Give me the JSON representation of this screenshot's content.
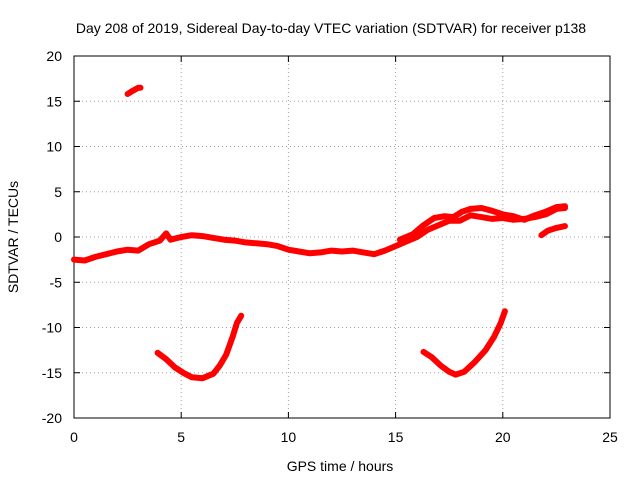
{
  "chart_data": {
    "type": "scatter",
    "title": "Day 208 of 2019, Sidereal Day-to-day VTEC variation (SDTVAR) for receiver p138",
    "xlabel": "GPS time / hours",
    "ylabel": "SDTVAR / TECUs",
    "xlim": [
      0,
      25
    ],
    "ylim": [
      -20,
      20
    ],
    "xticks": [
      0,
      5,
      10,
      15,
      20,
      25
    ],
    "yticks": [
      -20,
      -15,
      -10,
      -5,
      0,
      5,
      10,
      15,
      20
    ],
    "grid": true,
    "color": "#ff0000",
    "series": [
      {
        "name": "main-band",
        "points": [
          [
            0,
            -2.5
          ],
          [
            0.5,
            -2.6
          ],
          [
            1,
            -2.2
          ],
          [
            1.5,
            -1.9
          ],
          [
            2,
            -1.6
          ],
          [
            2.5,
            -1.4
          ],
          [
            3,
            -1.5
          ],
          [
            3.5,
            -0.8
          ],
          [
            4,
            -0.4
          ],
          [
            4.3,
            0.4
          ],
          [
            4.5,
            -0.3
          ],
          [
            5,
            0.0
          ],
          [
            5.5,
            0.2
          ],
          [
            6,
            0.1
          ],
          [
            6.5,
            -0.1
          ],
          [
            7,
            -0.3
          ],
          [
            7.5,
            -0.4
          ],
          [
            8,
            -0.6
          ],
          [
            8.5,
            -0.7
          ],
          [
            9,
            -0.8
          ],
          [
            9.5,
            -1.0
          ],
          [
            10,
            -1.4
          ],
          [
            10.5,
            -1.6
          ],
          [
            11,
            -1.8
          ],
          [
            11.5,
            -1.7
          ],
          [
            12,
            -1.5
          ],
          [
            12.5,
            -1.6
          ],
          [
            13,
            -1.5
          ],
          [
            13.5,
            -1.7
          ],
          [
            14,
            -1.9
          ],
          [
            14.5,
            -1.5
          ],
          [
            15,
            -1.0
          ],
          [
            15.5,
            -0.5
          ],
          [
            16,
            0.0
          ],
          [
            16.5,
            0.8
          ],
          [
            17,
            1.3
          ],
          [
            17.5,
            1.8
          ],
          [
            18,
            1.8
          ],
          [
            18.5,
            2.4
          ],
          [
            19,
            2.2
          ],
          [
            19.5,
            2.0
          ],
          [
            20,
            2.1
          ],
          [
            20.5,
            1.9
          ],
          [
            21,
            2.0
          ],
          [
            21.5,
            2.2
          ],
          [
            22,
            2.5
          ],
          [
            22.5,
            3.1
          ],
          [
            22.9,
            3.2
          ]
        ]
      },
      {
        "name": "upper-band",
        "points": [
          [
            15.2,
            -0.3
          ],
          [
            15.8,
            0.3
          ],
          [
            16.3,
            1.3
          ],
          [
            16.8,
            2.1
          ],
          [
            17.3,
            2.3
          ],
          [
            17.7,
            2.2
          ],
          [
            18.1,
            2.8
          ],
          [
            18.5,
            3.1
          ],
          [
            19,
            3.2
          ],
          [
            19.5,
            2.9
          ],
          [
            20,
            2.5
          ],
          [
            20.5,
            2.3
          ],
          [
            21,
            1.9
          ],
          [
            21.5,
            2.4
          ],
          [
            22,
            2.8
          ],
          [
            22.5,
            3.3
          ],
          [
            22.9,
            3.4
          ]
        ]
      },
      {
        "name": "early-high",
        "points": [
          [
            2.5,
            15.8
          ],
          [
            2.7,
            16.1
          ],
          [
            3.0,
            16.5
          ],
          [
            3.1,
            16.5
          ]
        ]
      },
      {
        "name": "late-right",
        "points": [
          [
            21.8,
            0.2
          ],
          [
            22.1,
            0.7
          ],
          [
            22.5,
            1.0
          ],
          [
            22.9,
            1.2
          ]
        ]
      },
      {
        "name": "trough-1",
        "points": [
          [
            3.9,
            -12.8
          ],
          [
            4.3,
            -13.5
          ],
          [
            4.7,
            -14.4
          ],
          [
            5.1,
            -15.0
          ],
          [
            5.5,
            -15.5
          ],
          [
            6.0,
            -15.6
          ],
          [
            6.5,
            -15.1
          ],
          [
            6.8,
            -14.2
          ],
          [
            7.1,
            -13.0
          ],
          [
            7.4,
            -11.0
          ],
          [
            7.6,
            -9.5
          ],
          [
            7.8,
            -8.7
          ]
        ]
      },
      {
        "name": "trough-2",
        "points": [
          [
            16.3,
            -12.7
          ],
          [
            16.7,
            -13.3
          ],
          [
            17.1,
            -14.2
          ],
          [
            17.5,
            -14.9
          ],
          [
            17.8,
            -15.2
          ],
          [
            18.2,
            -14.9
          ],
          [
            18.7,
            -13.8
          ],
          [
            19.2,
            -12.5
          ],
          [
            19.6,
            -11.0
          ],
          [
            19.9,
            -9.5
          ],
          [
            20.1,
            -8.2
          ]
        ]
      }
    ]
  }
}
